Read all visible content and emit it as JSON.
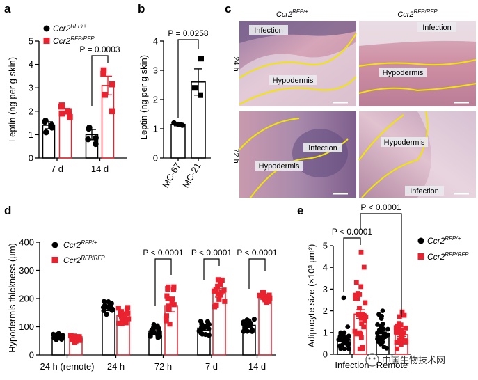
{
  "colors": {
    "black": "#000000",
    "red": "#e8232f",
    "hist_bg": "#c98fa6",
    "hist_dark": "#7c5a8c",
    "yellow": "#f2e600"
  },
  "legend": {
    "wt_base": "Ccr2",
    "wt_sup": "RFP/+",
    "ko_base": "Ccr2",
    "ko_sup": "RFP/RFP"
  },
  "panel_a": {
    "label": "a",
    "chart_data": {
      "type": "bar",
      "ylabel": "Leptin (ng per g skin)",
      "ylim": [
        0,
        5
      ],
      "yticks": [
        "0",
        "1",
        "2",
        "3",
        "4",
        "5"
      ],
      "categories": [
        "7 d",
        "14 d"
      ],
      "series": [
        {
          "name": "Ccr2 RFP/+",
          "means": [
            1.4,
            1.0
          ],
          "sem": [
            0.15,
            0.22
          ],
          "points": [
            [
              1.55,
              1.4,
              1.1,
              1.3,
              1.6
            ],
            [
              1.3,
              0.85,
              0.8,
              0.6,
              1.25
            ]
          ]
        },
        {
          "name": "Ccr2 RFP/RFP",
          "means": [
            2.0,
            3.1
          ],
          "sem": [
            0.12,
            0.4
          ],
          "points": [
            [
              2.2,
              1.75,
              1.9,
              2.0,
              2.25
            ],
            [
              3.6,
              3.15,
              2.7,
              2.0,
              3.75
            ]
          ]
        }
      ],
      "annotations": [
        {
          "text": "P = 0.0003",
          "between": "14 d"
        }
      ]
    }
  },
  "panel_b": {
    "label": "b",
    "chart_data": {
      "type": "bar",
      "ylabel": "Leptin (ng per g skin)",
      "ylim": [
        0,
        4
      ],
      "yticks": [
        "0",
        "1",
        "2",
        "3",
        "4"
      ],
      "categories": [
        "MC-67",
        "MC-21"
      ],
      "means": [
        1.15,
        2.6
      ],
      "sem": [
        0.05,
        0.45
      ],
      "points": [
        [
          1.2,
          1.15,
          1.12
        ],
        [
          3.4,
          2.4,
          2.15
        ]
      ],
      "annotations": [
        {
          "text": "P = 0.0258"
        }
      ]
    }
  },
  "panel_c": {
    "label": "c",
    "col_titles": [
      {
        "base": "Ccr2",
        "sup": "RFP/+"
      },
      {
        "base": "Ccr2",
        "sup": "RFP/RFP"
      }
    ],
    "row_labels": [
      "24 h",
      "72 h"
    ],
    "tiles": [
      {
        "labels": [
          "Infection",
          "Hypodermis"
        ]
      },
      {
        "labels": [
          "Infection",
          "Hypodermis"
        ]
      },
      {
        "labels": [
          "Infection",
          "Hypodermis"
        ]
      },
      {
        "labels": [
          "Hypodermis",
          "Infection"
        ]
      }
    ]
  },
  "panel_d": {
    "label": "d",
    "chart_data": {
      "type": "bar",
      "ylabel": "Hypodermis thickness (µm)",
      "ylim": [
        0,
        400
      ],
      "yticks": [
        "0",
        "100",
        "200",
        "300",
        "400"
      ],
      "categories": [
        "24 h (remote)",
        "24 h",
        "72 h",
        "7 d",
        "14 d"
      ],
      "series": [
        {
          "name": "Ccr2 RFP/+",
          "means": [
            65,
            165,
            85,
            95,
            105
          ],
          "sem": [
            4,
            8,
            8,
            8,
            6
          ],
          "spread": [
            12,
            25,
            28,
            28,
            22
          ]
        },
        {
          "name": "Ccr2 RFP/RFP",
          "means": [
            57,
            140,
            175,
            220,
            205
          ],
          "sem": [
            5,
            8,
            22,
            15,
            7
          ],
          "spread": [
            14,
            30,
            70,
            50,
            20
          ]
        }
      ],
      "annotations": [
        "P < 0.0001",
        "P < 0.0001",
        "P < 0.0001"
      ]
    }
  },
  "panel_e": {
    "label": "e",
    "chart_data": {
      "type": "bar",
      "ylabel": "Adipocyte size (×10³ µm²)",
      "ylim": [
        0,
        5
      ],
      "yticks": [
        "0",
        "1",
        "2",
        "3",
        "4",
        "5"
      ],
      "categories": [
        "Infection",
        "Remote"
      ],
      "series": [
        {
          "name": "Ccr2 RFP/+",
          "means": [
            0.7,
            0.95
          ],
          "sem": [
            0.07,
            0.07
          ],
          "spread": [
            0.6,
            0.9
          ],
          "max": [
            2.6,
            2.0
          ]
        },
        {
          "name": "Ccr2 RFP/RFP",
          "means": [
            1.85,
            0.9
          ],
          "sem": [
            0.2,
            0.08
          ],
          "spread": [
            2.2,
            0.9
          ],
          "max": [
            4.7,
            1.95
          ]
        }
      ],
      "annotations": [
        "P < 0.0001",
        "P < 0.0001"
      ]
    }
  },
  "watermark": "中国生物技术网"
}
